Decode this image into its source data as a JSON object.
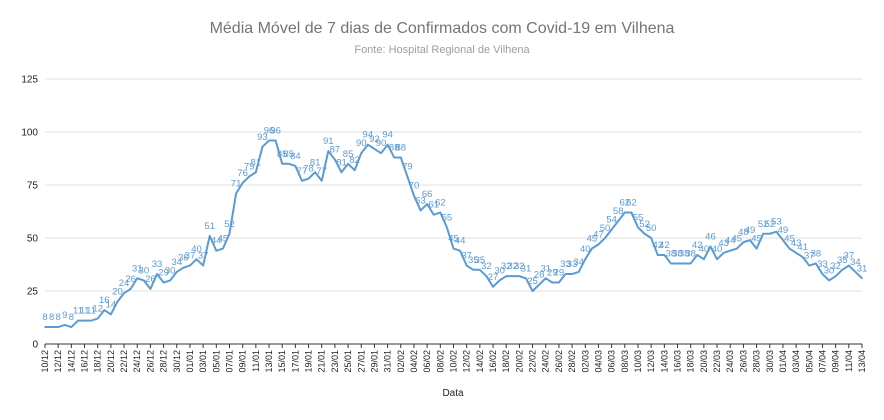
{
  "chart_data": {
    "type": "line",
    "title": "Média Móvel de 7 dias de Confirmados com Covid-19 em Vilhena",
    "subtitle": "Fonte: Hospital Regional de Vilhena",
    "xlabel": "Data",
    "ylabel": "",
    "ylim": [
      0,
      125
    ],
    "yticks": [
      0,
      25,
      50,
      75,
      100,
      125
    ],
    "grid": true,
    "line_color": "#5b9bd5",
    "grid_color": "#e0e0e0",
    "x_tick_labels": [
      "10/12",
      "12/12",
      "14/12",
      "16/12",
      "18/12",
      "20/12",
      "22/12",
      "24/12",
      "26/12",
      "28/12",
      "30/12",
      "01/01",
      "03/01",
      "05/01",
      "07/01",
      "09/01",
      "11/01",
      "13/01",
      "15/01",
      "17/01",
      "19/01",
      "21/01",
      "23/01",
      "25/01",
      "27/01",
      "29/01",
      "31/01",
      "02/02",
      "04/02",
      "06/02",
      "08/02",
      "10/02",
      "12/02",
      "14/02",
      "16/02",
      "18/02",
      "20/02",
      "22/02",
      "24/02",
      "26/02",
      "28/02",
      "02/03",
      "04/03",
      "06/03",
      "08/03",
      "10/03",
      "12/03",
      "14/03",
      "16/03",
      "18/03",
      "20/03",
      "22/03",
      "24/03",
      "26/03",
      "28/03",
      "30/03",
      "01/04",
      "03/04",
      "05/04",
      "07/04",
      "09/04",
      "11/04",
      "13/04"
    ],
    "series": [
      {
        "values": [
          8,
          8,
          8,
          9,
          8,
          11,
          11,
          11,
          12,
          16,
          14,
          20,
          24,
          26,
          31,
          30,
          26,
          33,
          29,
          30,
          34,
          36,
          37,
          40,
          37,
          51,
          44,
          45,
          52,
          71,
          76,
          79,
          81,
          93,
          96,
          96,
          85,
          85,
          84,
          77,
          78,
          81,
          77,
          91,
          87,
          81,
          85,
          82,
          90,
          94,
          92,
          90,
          94,
          88,
          88,
          79,
          70,
          63,
          66,
          61,
          62,
          55,
          45,
          44,
          37,
          35,
          35,
          32,
          27,
          30,
          32,
          32,
          32,
          31,
          25,
          28,
          31,
          29,
          29,
          33,
          33,
          34,
          40,
          45,
          47,
          50,
          54,
          58,
          62,
          62,
          55,
          52,
          50,
          42,
          42,
          38,
          38,
          38,
          38,
          42,
          40,
          46,
          40,
          43,
          44,
          45,
          48,
          49,
          45,
          52,
          52,
          53,
          49,
          45,
          43,
          41,
          37,
          38,
          33,
          30,
          32,
          35,
          37,
          34,
          31
        ]
      }
    ]
  }
}
